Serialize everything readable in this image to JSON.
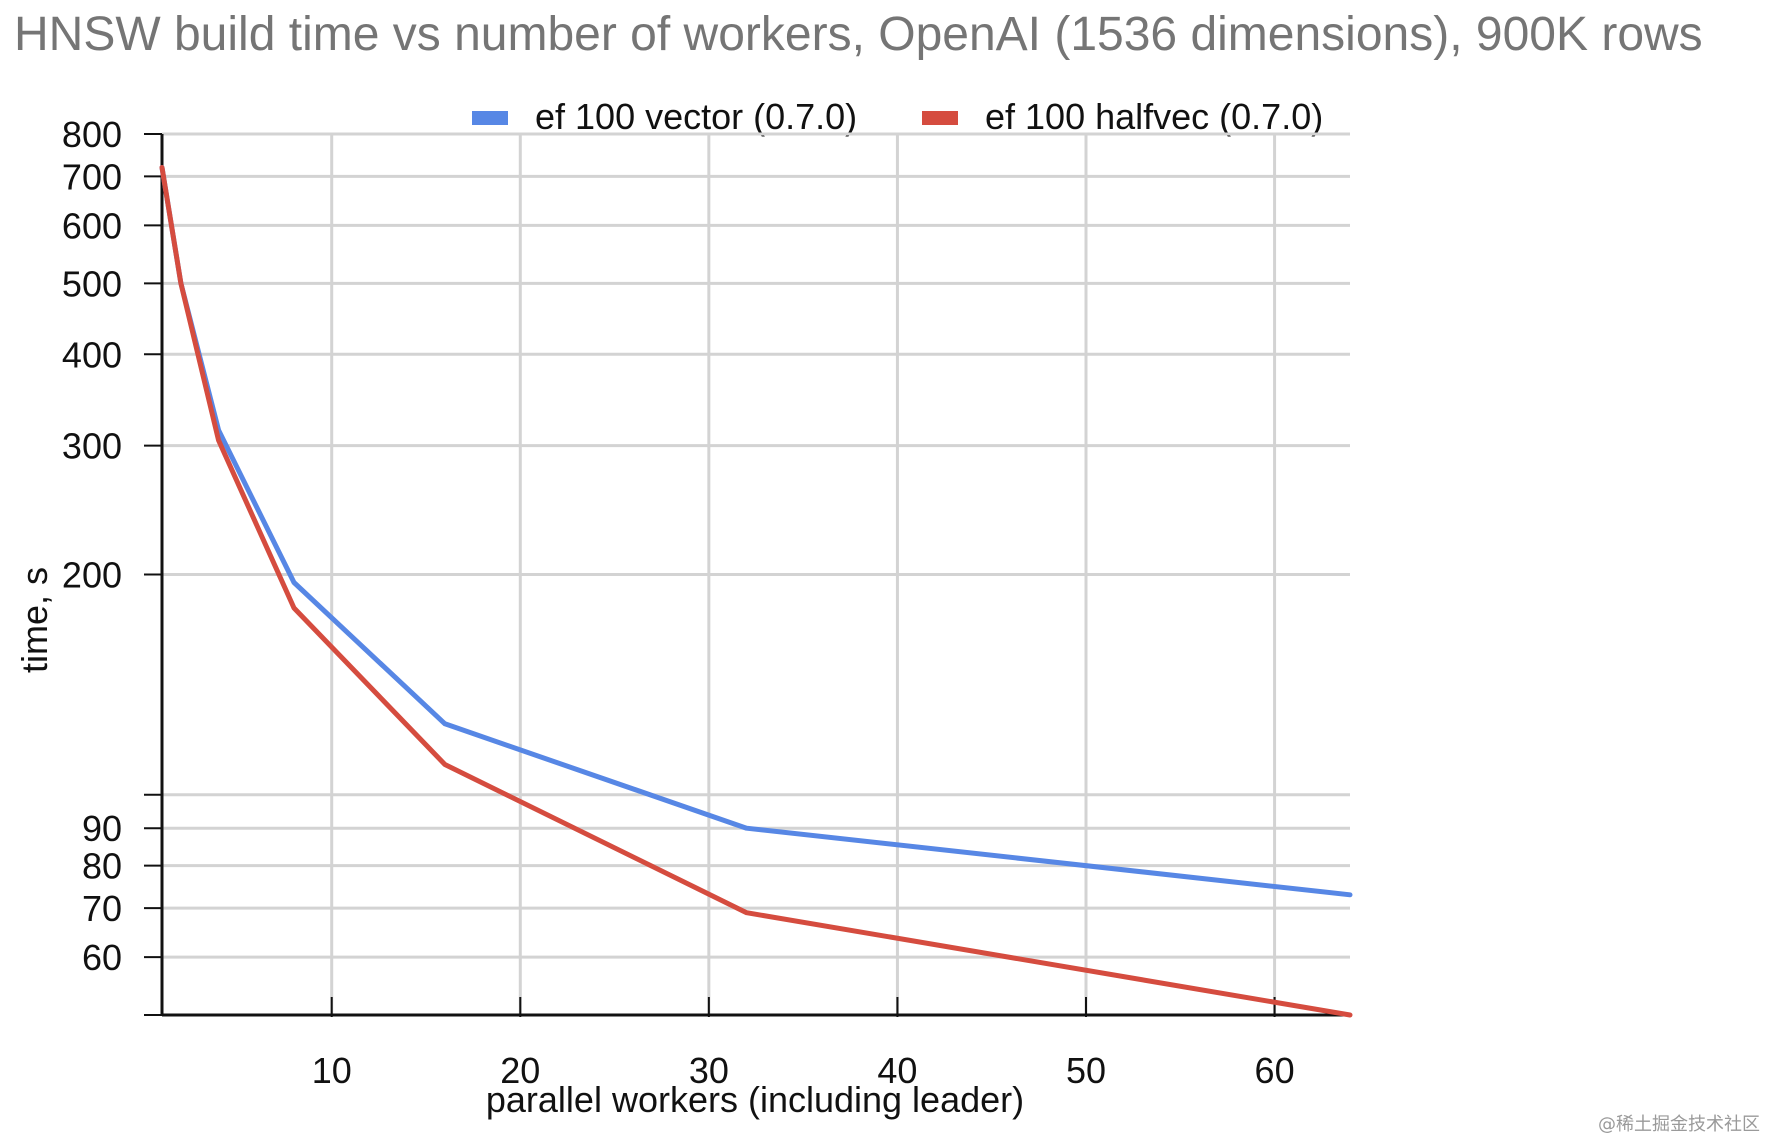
{
  "chart_data": {
    "type": "line",
    "title": "HNSW build time vs number of workers, OpenAI (1536 dimensions), 900K rows",
    "xlabel": "parallel workers (including leader)",
    "ylabel": "time, s",
    "watermark": "@稀土掘金技术社区",
    "xlim": [
      1,
      64
    ],
    "ylim": [
      50,
      800
    ],
    "y_scale": "log",
    "grid": true,
    "legend_position": "top",
    "x_ticks": [
      10,
      20,
      30,
      40,
      50,
      60
    ],
    "y_tick_marks": [
      50,
      60,
      70,
      80,
      90,
      100,
      200,
      300,
      400,
      500,
      600,
      700,
      800
    ],
    "y_tick_labels": [
      "60",
      "70",
      "80",
      "90",
      "200",
      "300",
      "400",
      "500",
      "600",
      "700",
      "800"
    ],
    "series": [
      {
        "name": "ef 100 vector (0.7.0)",
        "color": "#5787e5",
        "x": [
          1,
          2,
          4,
          8,
          16,
          32,
          64
        ],
        "values": [
          720,
          500,
          315,
          195,
          125,
          90,
          73
        ]
      },
      {
        "name": "ef 100 halfvec (0.7.0)",
        "color": "#d54c3f",
        "x": [
          1,
          2,
          4,
          8,
          16,
          32,
          64
        ],
        "values": [
          720,
          500,
          305,
          180,
          110,
          69,
          50
        ]
      }
    ]
  }
}
